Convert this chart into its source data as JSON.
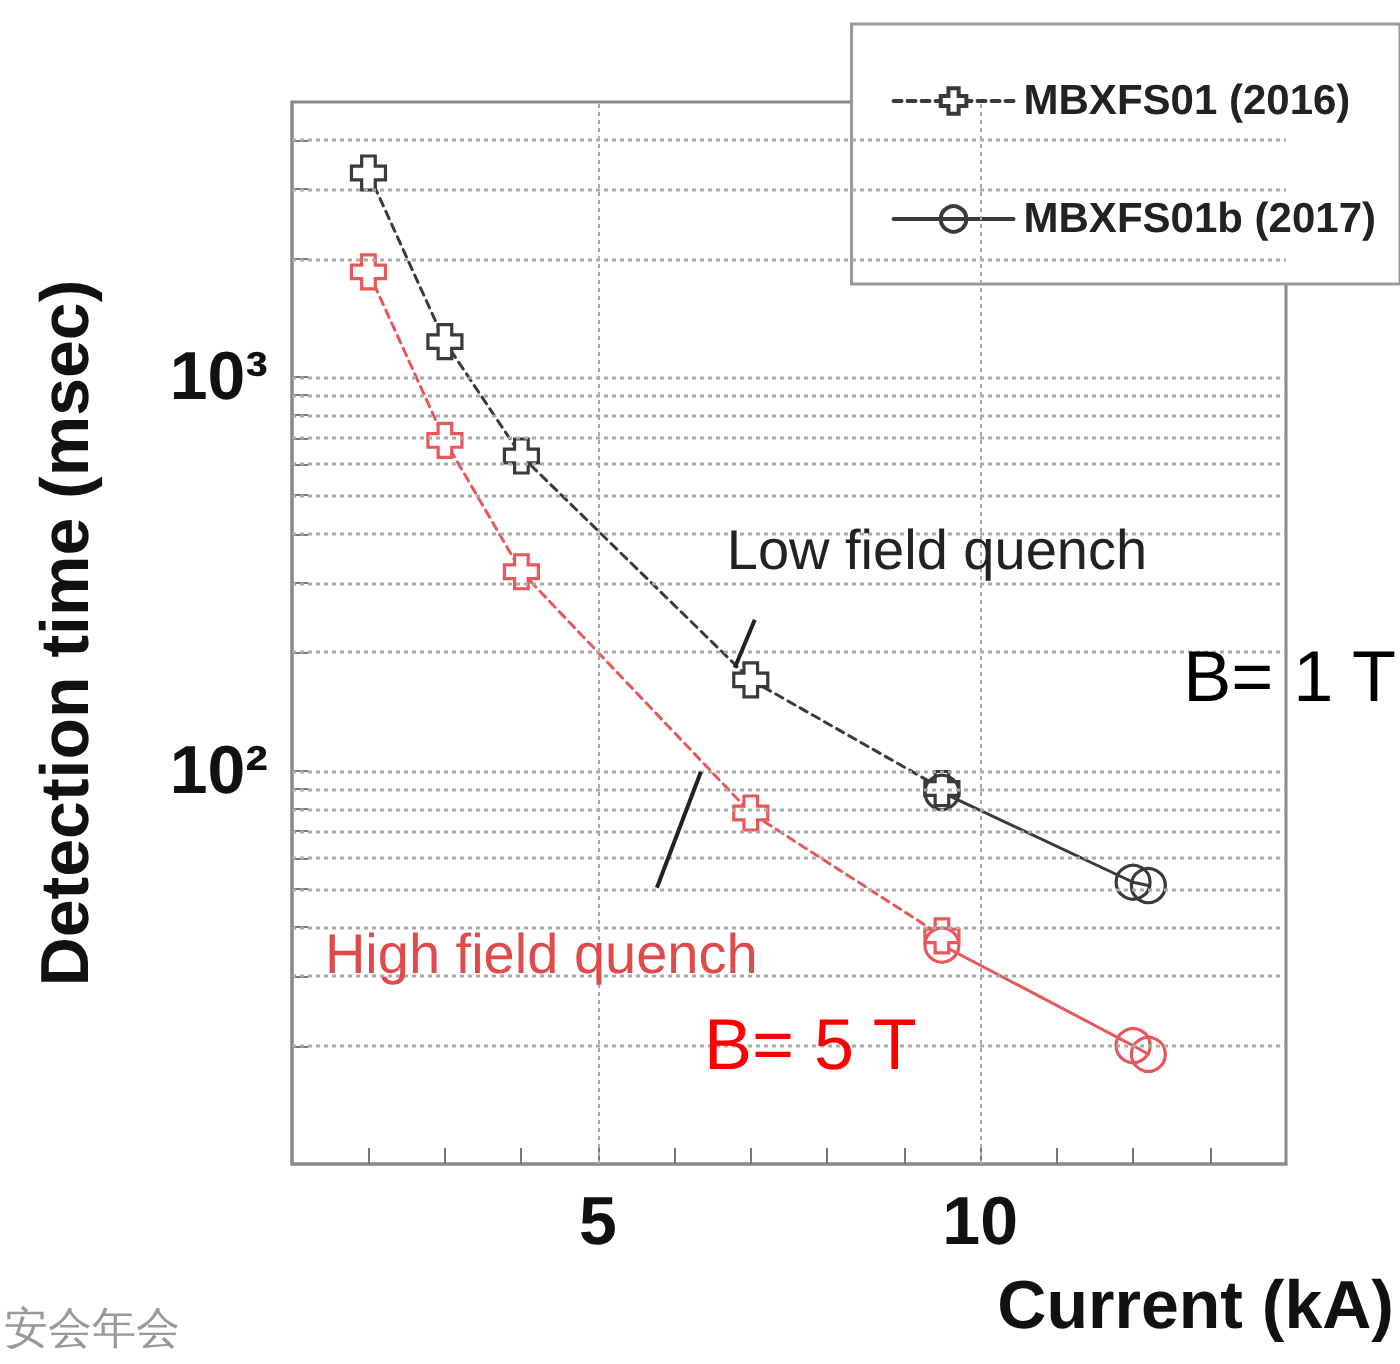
{
  "chart_data": {
    "type": "line",
    "xlabel": "Current (kA)",
    "ylabel": "Detection time (msec)",
    "xlim": [
      1,
      14
    ],
    "xticks": [
      {
        "value": 2,
        "label": null
      },
      {
        "value": 3,
        "label": null
      },
      {
        "value": 4,
        "label": null
      },
      5,
      {
        "value": 6,
        "label": null
      },
      {
        "value": 7,
        "label": null
      },
      {
        "value": 8,
        "label": null
      },
      {
        "value": 9,
        "label": null
      },
      10,
      {
        "value": 11,
        "label": null
      },
      {
        "value": 12,
        "label": null
      },
      {
        "value": 13,
        "label": null
      }
    ],
    "ylim": [
      10,
      5000
    ],
    "log": "y",
    "yticks": [
      {
        "value": 20,
        "label": null
      },
      {
        "value": 30,
        "label": null
      },
      {
        "value": 40,
        "label": null
      },
      {
        "value": 50,
        "label": null
      },
      {
        "value": 60,
        "label": null
      },
      {
        "value": 70,
        "label": null
      },
      {
        "value": 80,
        "label": null
      },
      {
        "value": 90,
        "label": null
      },
      {
        "value": 100,
        "label": "10²"
      },
      {
        "value": 200,
        "label": null
      },
      {
        "value": 300,
        "label": null
      },
      {
        "value": 400,
        "label": null
      },
      {
        "value": 500,
        "label": null
      },
      {
        "value": 600,
        "label": null
      },
      {
        "value": 700,
        "label": null
      },
      {
        "value": 800,
        "label": null
      },
      {
        "value": 900,
        "label": null
      },
      {
        "value": 1000,
        "label": "10³"
      },
      {
        "value": 2000,
        "label": null
      },
      {
        "value": 3000,
        "label": null
      },
      {
        "value": 4000,
        "label": null
      }
    ],
    "grid": true,
    "legend": "top right",
    "series": [
      {
        "name": "MBXFS01 (2016)",
        "color": "#3a3a3a",
        "marker": "cross",
        "line_style": "dashed",
        "x": [
          2,
          3,
          4,
          7,
          9.5
        ],
        "values": [
          3300,
          1230,
          630,
          170,
          90
        ]
      },
      {
        "color": "#e8585a",
        "marker": "cross",
        "line_style": "dashed",
        "x": [
          2,
          3,
          4,
          7,
          9.5
        ],
        "values": [
          1850,
          690,
          320,
          78,
          38
        ]
      },
      {
        "name": "MBXFS01b (2017)",
        "color": "#3a3a3a",
        "marker": "circle",
        "line_style": "solid",
        "x": [
          9.5,
          12,
          12.2
        ],
        "values": [
          88,
          52,
          51
        ]
      },
      {
        "color": "#e8585a",
        "marker": "circle",
        "line_style": "solid",
        "x": [
          9.5,
          12,
          12.2
        ],
        "values": [
          36,
          20,
          19
        ]
      }
    ],
    "annotations": [
      {
        "text": "Low field quench",
        "x": 7,
        "y": 170
      },
      {
        "text": "High field quench",
        "x": 6.4,
        "y": 104
      },
      "B= 1 T",
      "B= 5 T",
      "安会年会"
    ]
  }
}
